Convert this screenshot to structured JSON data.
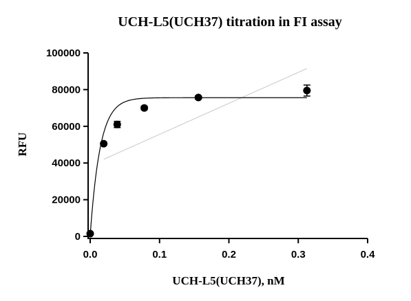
{
  "chart_data": {
    "type": "scatter",
    "title": "UCH-L5(UCH37) titration in FI assay",
    "xlabel": "UCH-L5(UCH37), nM",
    "ylabel": "RFU",
    "xlim": [
      0,
      0.4
    ],
    "ylim": [
      0,
      100000
    ],
    "xticks": [
      "0.0",
      "0.1",
      "0.2",
      "0.3",
      "0.4"
    ],
    "yticks": [
      "0",
      "20000",
      "40000",
      "60000",
      "80000",
      "100000"
    ],
    "grid": false,
    "legend": "none",
    "series": [
      {
        "points": [
          {
            "x": 0.0,
            "y": 1500,
            "err": 0
          },
          {
            "x": 0.0195,
            "y": 50500,
            "err": 800
          },
          {
            "x": 0.039,
            "y": 61000,
            "err": 1700
          },
          {
            "x": 0.078,
            "y": 70000,
            "err": 1000
          },
          {
            "x": 0.156,
            "y": 75700,
            "err": 900
          },
          {
            "x": 0.3125,
            "y": 79500,
            "err": 3000
          }
        ],
        "color": "#000000"
      }
    ],
    "fit_curve": {
      "model": "one-site saturation",
      "top": 75600,
      "bottom": 500,
      "rate": 70,
      "color": "#000000"
    },
    "trend_line": {
      "points": [
        {
          "x": 0.0195,
          "y": 42000
        },
        {
          "x": 0.3125,
          "y": 91500
        }
      ],
      "color": "#d0d0d0"
    }
  }
}
